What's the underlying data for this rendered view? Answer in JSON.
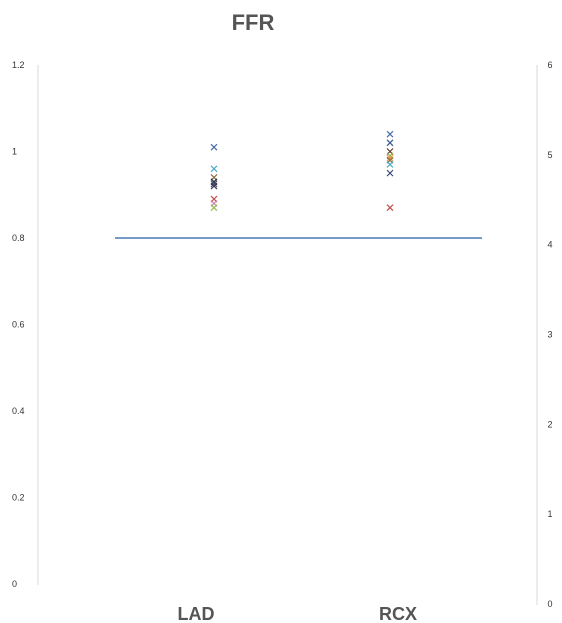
{
  "chart_data": {
    "type": "scatter",
    "title": "FFR",
    "categories": [
      "LAD",
      "RCX"
    ],
    "y_left": {
      "min": 0,
      "max": 1.2,
      "ticks": [
        "0",
        "0.2",
        "0.4",
        "0.6",
        "0.8",
        "1",
        "1.2"
      ]
    },
    "y_right": {
      "min": 0,
      "max": 6,
      "ticks": [
        "0",
        "1",
        "2",
        "3",
        "4",
        "5",
        "6"
      ]
    },
    "reference_line": {
      "y": 0.8,
      "color": "#4a7ab5"
    },
    "series": [
      {
        "category": "LAD",
        "values": [
          1.01,
          0.96,
          0.94,
          0.93,
          0.925,
          0.92,
          0.89,
          0.88,
          0.87
        ],
        "colors": [
          "#4a6fa5",
          "#4bacc6",
          "#8c6d3f",
          "#1f2d4f",
          "#555555",
          "#3a3a6a",
          "#c0504d",
          "#d08bb0",
          "#9bbb59"
        ]
      },
      {
        "category": "RCX",
        "values": [
          1.04,
          1.02,
          1.0,
          0.99,
          0.985,
          0.98,
          0.97,
          0.95,
          0.87
        ],
        "colors": [
          "#4a6fa5",
          "#3a5a8a",
          "#6b3a2a",
          "#9bbb59",
          "#f79646",
          "#8c6d3f",
          "#4bacc6",
          "#3a4a7a",
          "#c0504d"
        ]
      }
    ]
  }
}
